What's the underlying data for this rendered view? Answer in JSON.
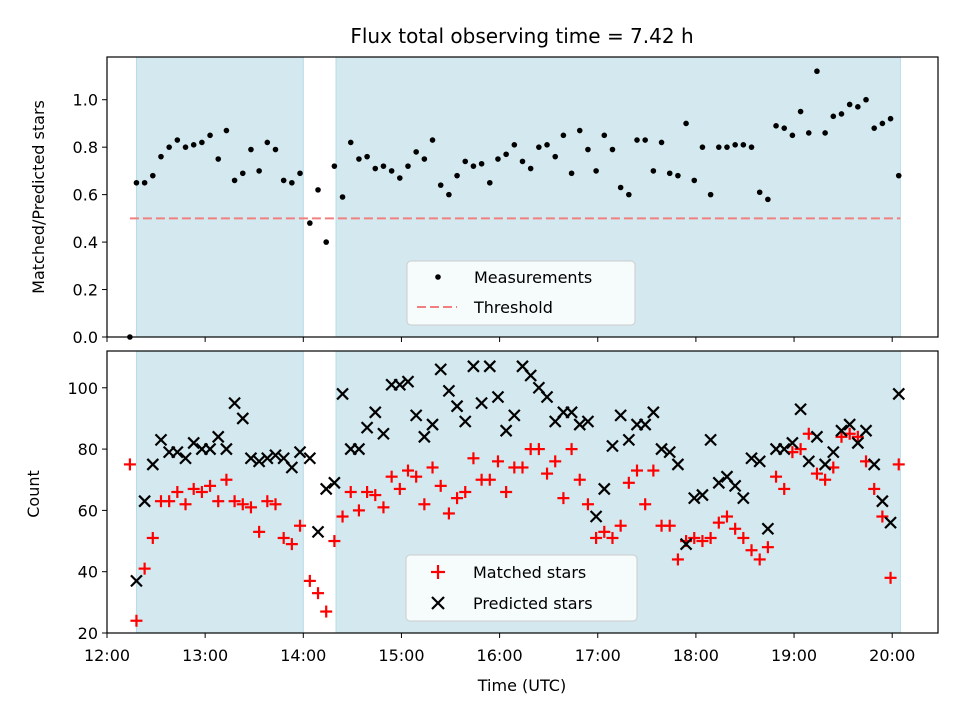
{
  "colors": {
    "band": "#d3e9ef",
    "band_edge": "#b5dbe6",
    "measurement": "#000000",
    "threshold": "#f08080",
    "matched": "#ff0000",
    "predicted": "#000000"
  },
  "chart_data": [
    {
      "type": "scatter",
      "title": "Flux total observing time = 7.42 h",
      "xlabel": "",
      "ylabel": "Matched/Predicted stars",
      "xlim": [
        "12:00",
        "20:28"
      ],
      "ylim": [
        0,
        1.18
      ],
      "yticks": [
        0.0,
        0.2,
        0.4,
        0.6,
        0.8,
        1.0
      ],
      "ytick_labels": [
        "0.0",
        "0.2",
        "0.4",
        "0.6",
        "0.8",
        "1.0"
      ],
      "x_tick_labels_shown": false,
      "shaded_intervals": [
        [
          "12:18",
          "14:00"
        ],
        [
          "14:20",
          "20:05"
        ]
      ],
      "threshold": {
        "name": "Threshold",
        "value": 0.5,
        "x_range": [
          "12:14",
          "20:05"
        ],
        "style": "dashed"
      },
      "legend": {
        "position": "lower-center",
        "entries": [
          "Measurements",
          "Threshold"
        ]
      },
      "series": [
        {
          "name": "Measurements",
          "marker": "dot",
          "x": [
            "12:14",
            "12:18",
            "12:23",
            "12:28",
            "12:33",
            "12:38",
            "12:43",
            "12:48",
            "12:53",
            "12:58",
            "13:03",
            "13:08",
            "13:13",
            "13:18",
            "13:23",
            "13:28",
            "13:33",
            "13:38",
            "13:43",
            "13:48",
            "13:53",
            "13:58",
            "14:04",
            "14:09",
            "14:14",
            "14:19",
            "14:24",
            "14:29",
            "14:34",
            "14:39",
            "14:44",
            "14:49",
            "14:54",
            "14:59",
            "15:04",
            "15:09",
            "15:14",
            "15:19",
            "15:24",
            "15:29",
            "15:34",
            "15:39",
            "15:44",
            "15:49",
            "15:54",
            "15:59",
            "16:04",
            "16:09",
            "16:14",
            "16:19",
            "16:24",
            "16:29",
            "16:34",
            "16:39",
            "16:44",
            "16:49",
            "16:54",
            "16:59",
            "17:04",
            "17:09",
            "17:14",
            "17:19",
            "17:24",
            "17:29",
            "17:34",
            "17:39",
            "17:44",
            "17:49",
            "17:54",
            "17:59",
            "18:04",
            "18:09",
            "18:14",
            "18:19",
            "18:24",
            "18:29",
            "18:34",
            "18:39",
            "18:44",
            "18:49",
            "18:54",
            "18:59",
            "19:04",
            "19:09",
            "19:14",
            "19:19",
            "19:24",
            "19:29",
            "19:34",
            "19:39",
            "19:44",
            "19:49",
            "19:54",
            "19:59",
            "20:04"
          ],
          "y": [
            0.0,
            0.65,
            0.65,
            0.68,
            0.76,
            0.8,
            0.83,
            0.8,
            0.81,
            0.82,
            0.85,
            0.75,
            0.87,
            0.66,
            0.69,
            0.79,
            0.7,
            0.82,
            0.79,
            0.66,
            0.65,
            0.69,
            0.48,
            0.62,
            0.4,
            0.72,
            0.59,
            0.82,
            0.75,
            0.76,
            0.71,
            0.72,
            0.7,
            0.67,
            0.72,
            0.78,
            0.75,
            0.83,
            0.64,
            0.6,
            0.68,
            0.74,
            0.72,
            0.73,
            0.65,
            0.75,
            0.77,
            0.81,
            0.74,
            0.71,
            0.8,
            0.81,
            0.76,
            0.85,
            0.69,
            0.87,
            0.79,
            0.7,
            0.85,
            0.79,
            0.63,
            0.6,
            0.83,
            0.83,
            0.7,
            0.82,
            0.69,
            0.68,
            0.9,
            0.66,
            0.8,
            0.6,
            0.8,
            0.8,
            0.81,
            0.81,
            0.8,
            0.61,
            0.58,
            0.89,
            0.88,
            0.85,
            0.95,
            0.86,
            1.12,
            0.86,
            0.93,
            0.94,
            0.98,
            0.97,
            1.0,
            0.88,
            0.9,
            0.92,
            0.68
          ]
        }
      ]
    },
    {
      "type": "scatter",
      "title": "",
      "xlabel": "Time (UTC)",
      "ylabel": "Count",
      "xlim": [
        "12:00",
        "20:28"
      ],
      "ylim": [
        20,
        112
      ],
      "yticks": [
        20,
        40,
        60,
        80,
        100
      ],
      "ytick_labels": [
        "20",
        "40",
        "60",
        "80",
        "100"
      ],
      "xticks": [
        "12:00",
        "13:00",
        "14:00",
        "15:00",
        "16:00",
        "17:00",
        "18:00",
        "19:00",
        "20:00"
      ],
      "xtick_labels": [
        "12:00",
        "13:00",
        "14:00",
        "15:00",
        "16:00",
        "17:00",
        "18:00",
        "19:00",
        "20:00"
      ],
      "shaded_intervals": [
        [
          "12:18",
          "14:00"
        ],
        [
          "14:20",
          "20:05"
        ]
      ],
      "legend": {
        "position": "lower-center",
        "entries": [
          "Matched stars",
          "Predicted stars"
        ]
      },
      "series": [
        {
          "name": "Matched stars",
          "marker": "plus",
          "x": [
            "12:14",
            "12:18",
            "12:23",
            "12:28",
            "12:33",
            "12:38",
            "12:43",
            "12:48",
            "12:53",
            "12:58",
            "13:03",
            "13:08",
            "13:13",
            "13:18",
            "13:23",
            "13:28",
            "13:33",
            "13:38",
            "13:43",
            "13:48",
            "13:53",
            "13:58",
            "14:04",
            "14:09",
            "14:14",
            "14:19",
            "14:24",
            "14:29",
            "14:34",
            "14:39",
            "14:44",
            "14:49",
            "14:54",
            "14:59",
            "15:04",
            "15:09",
            "15:14",
            "15:19",
            "15:24",
            "15:29",
            "15:34",
            "15:39",
            "15:44",
            "15:49",
            "15:54",
            "15:59",
            "16:04",
            "16:09",
            "16:14",
            "16:19",
            "16:24",
            "16:29",
            "16:34",
            "16:39",
            "16:44",
            "16:49",
            "16:54",
            "16:59",
            "17:04",
            "17:09",
            "17:14",
            "17:19",
            "17:24",
            "17:29",
            "17:34",
            "17:39",
            "17:44",
            "17:49",
            "17:54",
            "17:59",
            "18:04",
            "18:09",
            "18:14",
            "18:19",
            "18:24",
            "18:29",
            "18:34",
            "18:39",
            "18:44",
            "18:49",
            "18:54",
            "18:59",
            "19:04",
            "19:09",
            "19:14",
            "19:19",
            "19:24",
            "19:29",
            "19:34",
            "19:39",
            "19:44",
            "19:49",
            "19:54",
            "19:59",
            "20:04"
          ],
          "y": [
            75,
            24,
            41,
            51,
            63,
            63,
            66,
            62,
            67,
            66,
            68,
            63,
            70,
            63,
            62,
            61,
            53,
            63,
            62,
            51,
            49,
            55,
            37,
            33,
            27,
            50,
            58,
            66,
            60,
            66,
            65,
            61,
            71,
            67,
            73,
            71,
            62,
            74,
            68,
            59,
            64,
            66,
            77,
            70,
            70,
            76,
            66,
            74,
            74,
            80,
            80,
            72,
            76,
            64,
            80,
            70,
            62,
            51,
            53,
            51,
            55,
            69,
            73,
            62,
            73,
            55,
            55,
            44,
            50,
            51,
            50,
            51,
            56,
            58,
            54,
            51,
            47,
            44,
            48,
            71,
            67,
            79,
            80,
            85,
            72,
            70,
            74,
            84,
            85,
            84,
            76,
            67,
            58,
            38,
            75
          ]
        },
        {
          "name": "Predicted stars",
          "marker": "x",
          "x": [
            "12:18",
            "12:23",
            "12:28",
            "12:33",
            "12:38",
            "12:43",
            "12:48",
            "12:53",
            "12:58",
            "13:03",
            "13:08",
            "13:13",
            "13:18",
            "13:23",
            "13:28",
            "13:33",
            "13:38",
            "13:43",
            "13:48",
            "13:53",
            "13:58",
            "14:04",
            "14:09",
            "14:14",
            "14:19",
            "14:24",
            "14:29",
            "14:34",
            "14:39",
            "14:44",
            "14:49",
            "14:54",
            "14:59",
            "15:04",
            "15:09",
            "15:14",
            "15:19",
            "15:24",
            "15:29",
            "15:34",
            "15:39",
            "15:44",
            "15:49",
            "15:54",
            "15:59",
            "16:04",
            "16:09",
            "16:14",
            "16:19",
            "16:24",
            "16:29",
            "16:34",
            "16:39",
            "16:44",
            "16:49",
            "16:54",
            "16:59",
            "17:04",
            "17:09",
            "17:14",
            "17:19",
            "17:24",
            "17:29",
            "17:34",
            "17:39",
            "17:44",
            "17:49",
            "17:54",
            "17:59",
            "18:04",
            "18:09",
            "18:14",
            "18:19",
            "18:24",
            "18:29",
            "18:34",
            "18:39",
            "18:44",
            "18:49",
            "18:54",
            "18:59",
            "19:04",
            "19:09",
            "19:14",
            "19:19",
            "19:24",
            "19:29",
            "19:34",
            "19:39",
            "19:44",
            "19:49",
            "19:54",
            "19:59",
            "20:04"
          ],
          "y": [
            37,
            63,
            75,
            83,
            79,
            79,
            77,
            82,
            80,
            80,
            84,
            80,
            95,
            90,
            77,
            76,
            77,
            78,
            77,
            74,
            79,
            77,
            53,
            67,
            69,
            98,
            80,
            80,
            87,
            92,
            85,
            101,
            101,
            102,
            91,
            84,
            88,
            106,
            99,
            94,
            89,
            107,
            95,
            107,
            97,
            86,
            91,
            107,
            104,
            100,
            97,
            89,
            92,
            92,
            88,
            89,
            58,
            67,
            81,
            91,
            83,
            88,
            88,
            92,
            80,
            79,
            75,
            49,
            64,
            65,
            83,
            69,
            71,
            68,
            64,
            77,
            76,
            54,
            80,
            80,
            82,
            93,
            76,
            84,
            75,
            79,
            86,
            88,
            82,
            86,
            75,
            63,
            56,
            98
          ]
        }
      ]
    }
  ]
}
